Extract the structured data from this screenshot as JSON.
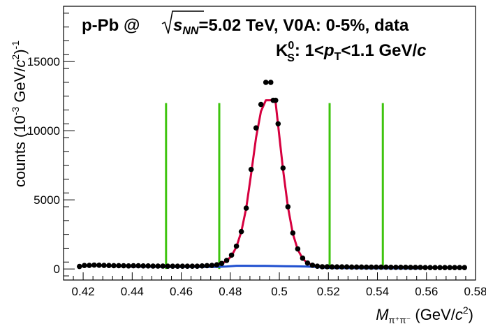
{
  "chart_data": {
    "type": "scatter",
    "title_line1": {
      "prefix": "p-Pb @ ",
      "sqrt_var": "s",
      "sqrt_sub": "NN",
      "suffix": "=5.02 TeV, V0A: 0-5%, data"
    },
    "title_line2": {
      "k": "K",
      "k_sup": "0",
      "k_sub": "S",
      "pt_prefix": ": 1<",
      "pt_var": "p",
      "pt_sub": "T",
      "pt_suffix": "<1.1 GeV/",
      "pt_unit": "c"
    },
    "xlabel": {
      "var": "M",
      "sub": "π⁺π⁻",
      "unit_prefix": " (GeV/",
      "unit_var": "c",
      "unit_sup": "2",
      "unit_suffix": ")"
    },
    "ylabel": {
      "prefix": "counts (10",
      "exp": "-3",
      "mid": " GeV/",
      "var": "c",
      "var_sup": "2",
      "suffix": ")",
      "outer_sup": "-1"
    },
    "xlim": [
      0.412,
      0.58
    ],
    "ylim": [
      -800,
      19000
    ],
    "x_ticks": [
      "0.42",
      "0.44",
      "0.46",
      "0.48",
      "0.5",
      "0.52",
      "0.54",
      "0.56",
      "0.58"
    ],
    "y_ticks": [
      "0",
      "5000",
      "10000",
      "15000"
    ],
    "grid": false,
    "series": [
      {
        "type": "scatter",
        "x": [
          0.4185,
          0.4205,
          0.4225,
          0.4245,
          0.4265,
          0.4285,
          0.4305,
          0.4325,
          0.4345,
          0.4365,
          0.4385,
          0.4405,
          0.4425,
          0.4445,
          0.4465,
          0.4485,
          0.4505,
          0.4525,
          0.4545,
          0.4565,
          0.4585,
          0.4605,
          0.4625,
          0.4645,
          0.4665,
          0.4685,
          0.4705,
          0.4725,
          0.4745,
          0.4765,
          0.4785,
          0.4805,
          0.4825,
          0.4845,
          0.4865,
          0.4885,
          0.4905,
          0.4925,
          0.4945,
          0.4965,
          0.4975,
          0.4985,
          0.4995,
          0.5015,
          0.5035,
          0.5055,
          0.5075,
          0.5095,
          0.5115,
          0.5135,
          0.5155,
          0.5175,
          0.5195,
          0.5215,
          0.5235,
          0.5255,
          0.5275,
          0.5295,
          0.5315,
          0.5335,
          0.5355,
          0.5375,
          0.5395,
          0.5415,
          0.5435,
          0.5455,
          0.5475,
          0.5495,
          0.5515,
          0.5535,
          0.5555,
          0.5575,
          0.5595,
          0.5615,
          0.5635,
          0.5655,
          0.5675,
          0.5695,
          0.5715,
          0.5735,
          0.5755
        ],
        "y": [
          180,
          250,
          260,
          280,
          270,
          260,
          250,
          240,
          240,
          230,
          220,
          230,
          230,
          220,
          220,
          210,
          210,
          210,
          200,
          200,
          200,
          200,
          200,
          200,
          200,
          220,
          240,
          260,
          300,
          400,
          620,
          1000,
          1650,
          2700,
          4400,
          7200,
          10200,
          11900,
          13500,
          13500,
          12200,
          12200,
          10500,
          7300,
          4500,
          2600,
          1450,
          780,
          430,
          270,
          200,
          160,
          160,
          150,
          150,
          150,
          150,
          140,
          140,
          140,
          130,
          130,
          130,
          130,
          130,
          120,
          120,
          120,
          120,
          110,
          110,
          110,
          100,
          100,
          100,
          100,
          100,
          100,
          100,
          100,
          100
        ]
      },
      {
        "type": "line",
        "x": [
          0.4385,
          0.4425,
          0.4465,
          0.4505,
          0.4545,
          0.4585,
          0.4625,
          0.4665,
          0.4705,
          0.4745,
          0.4765,
          0.4785,
          0.4805,
          0.4825,
          0.4845,
          0.4865,
          0.4885,
          0.4905,
          0.4925,
          0.4945,
          0.4965,
          0.4975,
          0.4985,
          0.4995,
          0.5015,
          0.5035,
          0.5055,
          0.5075,
          0.5095,
          0.5115,
          0.5135,
          0.5155,
          0.5175,
          0.5215,
          0.5255,
          0.5295,
          0.5335,
          0.5375,
          0.5415,
          0.5455,
          0.5495,
          0.5535,
          0.5575
        ],
        "y": [
          200,
          205,
          205,
          205,
          210,
          210,
          215,
          220,
          235,
          290,
          380,
          580,
          950,
          1600,
          2700,
          4400,
          6900,
          9500,
          11400,
          12200,
          12200,
          12300,
          12000,
          10400,
          7200,
          4500,
          2550,
          1400,
          750,
          420,
          280,
          210,
          180,
          160,
          150,
          150,
          145,
          140,
          140,
          135,
          130,
          125,
          120
        ]
      },
      {
        "type": "line",
        "x": [
          0.4385,
          0.4425,
          0.4465,
          0.4505,
          0.4545,
          0.4585,
          0.4625,
          0.4665,
          0.4705,
          0.4745,
          0.4785,
          0.4825,
          0.4865,
          0.4905,
          0.4945,
          0.4985,
          0.5025,
          0.5065,
          0.5105,
          0.5145,
          0.5185,
          0.5215,
          0.5255,
          0.5295,
          0.5335,
          0.5375,
          0.5415,
          0.5455,
          0.5495,
          0.5535,
          0.5575
        ],
        "y": [
          170,
          165,
          160,
          155,
          150,
          150,
          150,
          150,
          150,
          150,
          180,
          230,
          230,
          220,
          220,
          210,
          200,
          190,
          180,
          150,
          100,
          70,
          65,
          60,
          55,
          50,
          45,
          45,
          40,
          40,
          40
        ]
      },
      {
        "type": "vline",
        "x": [
          0.4538,
          0.4755,
          0.5205,
          0.5422
        ],
        "y_range": [
          0,
          12000
        ]
      }
    ],
    "colors": {
      "data": "#000000",
      "fit": "#d6003f",
      "background": "#1f4fcf",
      "markers": "#3ec40e"
    }
  }
}
